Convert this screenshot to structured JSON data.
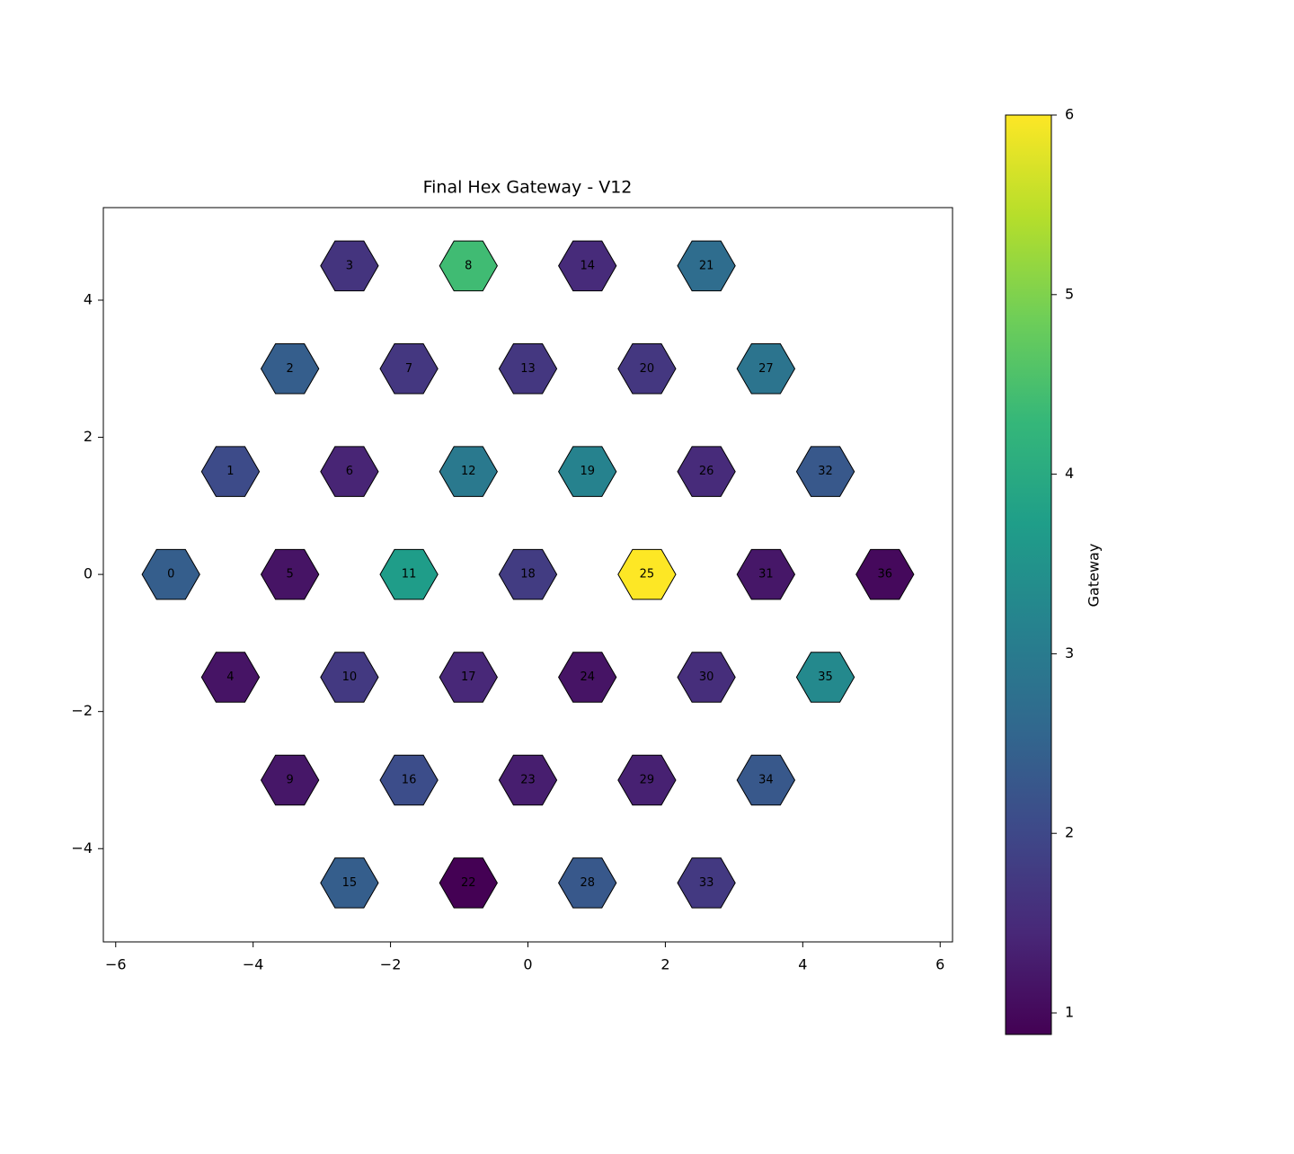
{
  "chart_data": {
    "type": "hexmap",
    "title": "Final Hex Gateway - V12",
    "colorbar_label": "Gateway",
    "labels": [
      "0",
      "1",
      "2",
      "3",
      "4",
      "5",
      "6",
      "7",
      "8",
      "9",
      "10",
      "11",
      "12",
      "13",
      "14",
      "15",
      "16",
      "17",
      "18",
      "19",
      "20",
      "21",
      "22",
      "23",
      "24",
      "25",
      "26",
      "27",
      "28",
      "29",
      "30",
      "31",
      "32",
      "33",
      "34",
      "35",
      "36"
    ],
    "x": [
      -5.196,
      -4.33,
      -3.464,
      -2.598,
      -4.33,
      -3.464,
      -2.598,
      -1.732,
      -0.866,
      -3.464,
      -2.598,
      -1.732,
      -0.866,
      0,
      0.866,
      -2.598,
      -1.732,
      -0.866,
      0,
      0.866,
      1.732,
      2.598,
      -0.866,
      0,
      0.866,
      1.732,
      2.598,
      3.464,
      0.866,
      1.732,
      2.598,
      3.464,
      4.33,
      2.598,
      3.464,
      4.33,
      5.196
    ],
    "y": [
      0,
      1.5,
      3,
      4.5,
      -1.5,
      0,
      1.5,
      3,
      4.5,
      -3,
      -1.5,
      0,
      1.5,
      3,
      4.5,
      -4.5,
      -3,
      -1.5,
      0,
      1.5,
      3,
      4.5,
      -4.5,
      -3,
      -1.5,
      0,
      1.5,
      3,
      -4.5,
      -3,
      -1.5,
      0,
      1.5,
      -4.5,
      -3,
      -1.5,
      0
    ],
    "values": [
      2.4,
      2.05,
      2.4,
      1.65,
      1.15,
      1.15,
      1.4,
      1.7,
      4.4,
      1.2,
      1.75,
      3.7,
      2.95,
      1.7,
      1.5,
      2.4,
      2.1,
      1.45,
      1.8,
      3.15,
      1.7,
      2.7,
      0.88,
      1.3,
      1.15,
      6,
      1.5,
      2.85,
      2.3,
      1.35,
      1.55,
      1.2,
      2.3,
      1.75,
      2.3,
      3.3,
      1.0
    ],
    "xlim": [
      -6.18,
      6.18
    ],
    "ylim": [
      -5.36,
      5.35
    ],
    "xticks": [
      {
        "value": -6,
        "label": "−6"
      },
      {
        "value": -4,
        "label": "−4"
      },
      {
        "value": -2,
        "label": "−2"
      },
      0,
      2,
      4,
      6
    ],
    "yticks": [
      {
        "value": -4,
        "label": "−4"
      },
      {
        "value": -2,
        "label": "−2"
      },
      0,
      2,
      4
    ],
    "clim": [
      0.88,
      6
    ],
    "cticks": [
      1,
      2,
      3,
      4,
      5,
      6
    ],
    "colorscale": [
      "#440154",
      "#482878",
      "#3e4989",
      "#31688e",
      "#26828e",
      "#1f9e89",
      "#35b779",
      "#6ece58",
      "#b5de2b",
      "#fde725"
    ],
    "edgecolor": "#000000"
  }
}
